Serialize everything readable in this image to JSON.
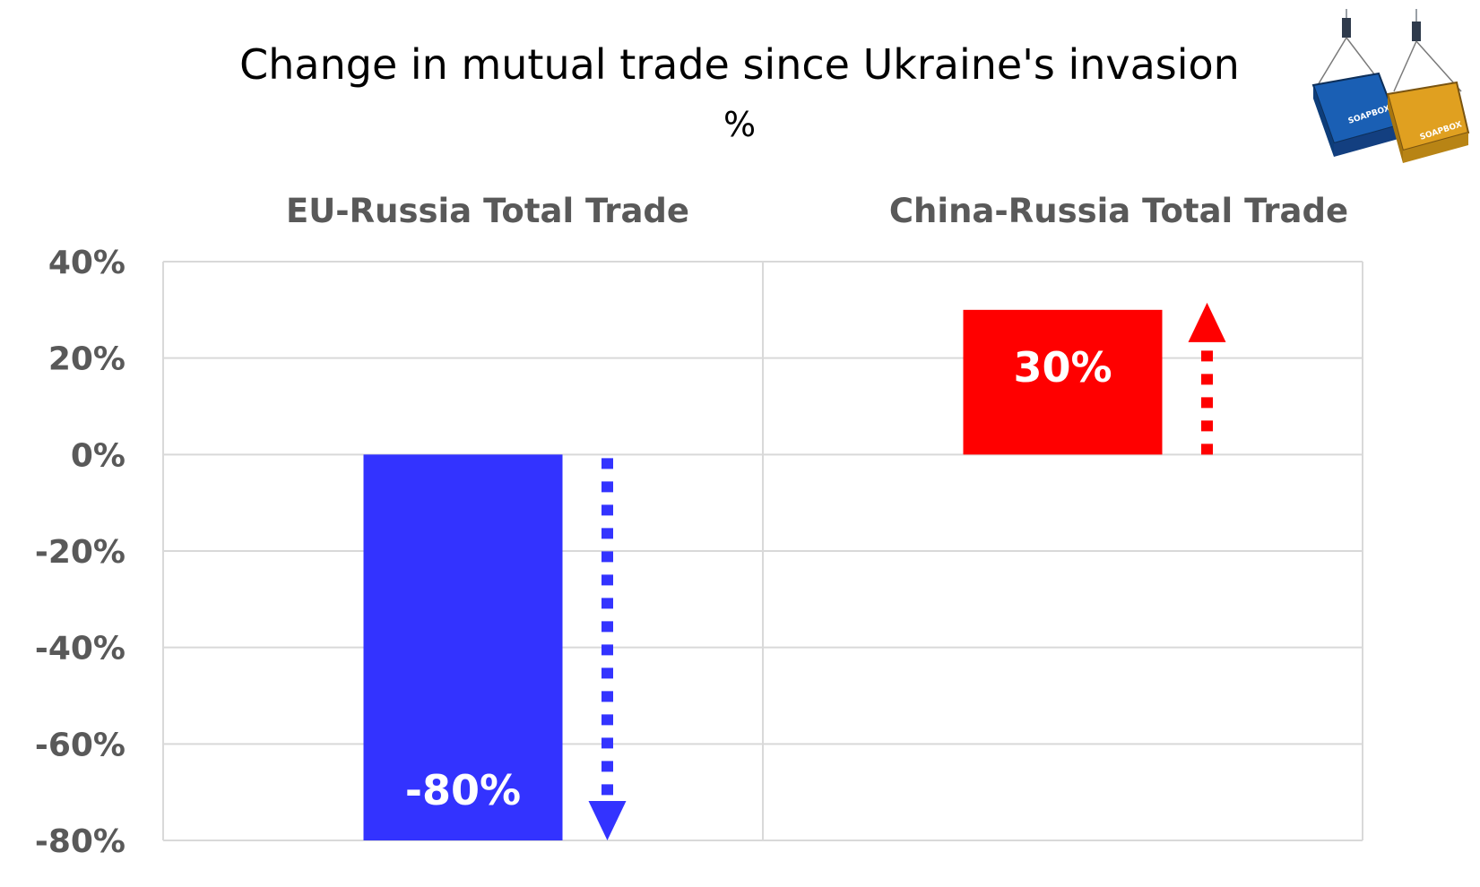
{
  "chart_data": {
    "type": "bar",
    "title": "Change in mutual trade since Ukraine's invasion",
    "subtitle": "%",
    "ylim": [
      -80,
      40
    ],
    "yticks": [
      40,
      20,
      0,
      -20,
      -40,
      -60,
      -80
    ],
    "ytick_labels": [
      "40%",
      "20%",
      "0%",
      "-20%",
      "-40%",
      "-60%",
      "-80%"
    ],
    "grid": true,
    "panels": [
      {
        "title": "EU-Russia Total Trade",
        "value": -80,
        "label": "-80%",
        "color": "#3333ff",
        "arrow": "down"
      },
      {
        "title": "China-Russia Total Trade",
        "value": 30,
        "label": "30%",
        "color": "#ff0000",
        "arrow": "up"
      }
    ]
  },
  "logo": {
    "text_left": "SOAPBOX",
    "text_right": "SOAPBOX",
    "colors": [
      "#1a5fb4",
      "#e0a020"
    ]
  }
}
